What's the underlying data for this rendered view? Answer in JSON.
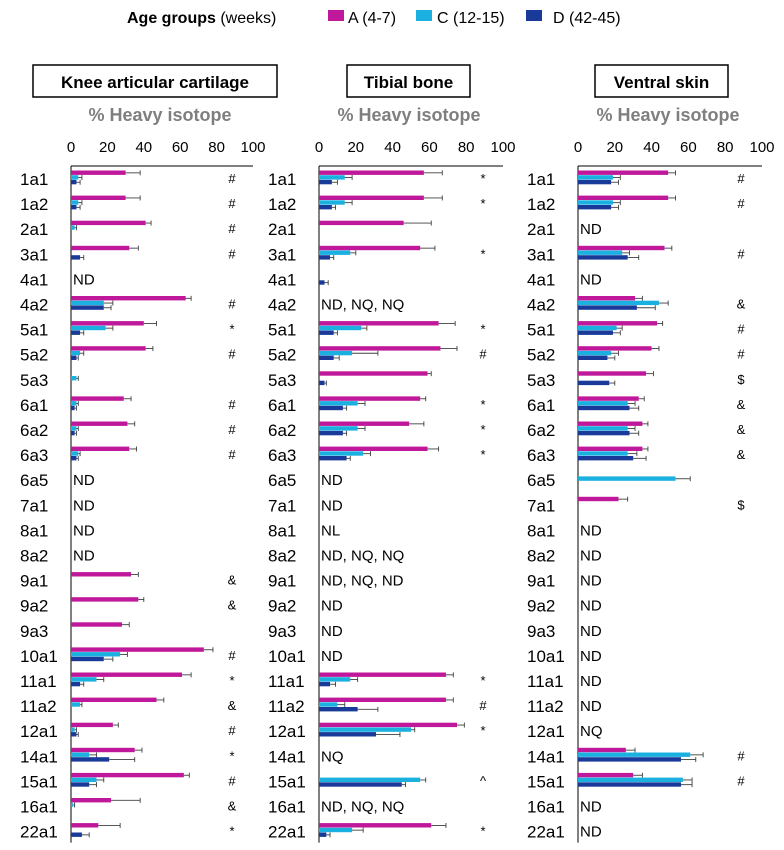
{
  "legend": {
    "title_bold": "Age groups",
    "title_suffix": " (weeks)",
    "items": [
      {
        "label": "A (4-7)",
        "color": "#c0189a"
      },
      {
        "label": "C (12-15)",
        "color": "#1ab0e0"
      },
      {
        "label": "D (42-45)",
        "color": "#1a3a9a"
      }
    ]
  },
  "chart_data": [
    {
      "type": "bar",
      "title": "Knee articular cartilage",
      "xlabel": "% Heavy isotope",
      "xlim": [
        0,
        100
      ],
      "xticks": [
        0,
        20,
        40,
        60,
        80,
        100
      ],
      "categories": [
        "1a1",
        "1a2",
        "2a1",
        "3a1",
        "4a1",
        "4a2",
        "5a1",
        "5a2",
        "5a3",
        "6a1",
        "6a2",
        "6a3",
        "6a5",
        "7a1",
        "8a1",
        "8a2",
        "9a1",
        "9a2",
        "9a3",
        "10a1",
        "11a1",
        "11a2",
        "12a1",
        "14a1",
        "15a1",
        "16a1",
        "22a1"
      ],
      "series": [
        {
          "name": "A (4-7)",
          "values": [
            30,
            30,
            41,
            32,
            null,
            63,
            40,
            41,
            null,
            29,
            31,
            32,
            null,
            null,
            null,
            null,
            33,
            37,
            28,
            73,
            61,
            47,
            23,
            35,
            62,
            22,
            15
          ],
          "errors": [
            8,
            8,
            3,
            5,
            null,
            3,
            7,
            4,
            null,
            4,
            4,
            4,
            null,
            null,
            null,
            null,
            4,
            3,
            4,
            5,
            5,
            4,
            3,
            4,
            3,
            16,
            12
          ]
        },
        {
          "name": "C (12-15)",
          "values": [
            4,
            4,
            2,
            null,
            null,
            18,
            19,
            5,
            3,
            3,
            3,
            4,
            null,
            null,
            null,
            null,
            null,
            null,
            null,
            27,
            14,
            5,
            2,
            10,
            14,
            1,
            null
          ],
          "errors": [
            2,
            2,
            1,
            null,
            null,
            5,
            4,
            2,
            1,
            1,
            1,
            1,
            null,
            null,
            null,
            null,
            null,
            null,
            null,
            4,
            4,
            1,
            1,
            4,
            4,
            1,
            null
          ]
        },
        {
          "name": "D (42-45)",
          "values": [
            3,
            3,
            null,
            5,
            null,
            18,
            5,
            3,
            null,
            2,
            2,
            3,
            null,
            null,
            null,
            null,
            null,
            null,
            null,
            18,
            5,
            null,
            3,
            21,
            10,
            null,
            6
          ],
          "errors": [
            2,
            2,
            null,
            2,
            null,
            4,
            2,
            1,
            null,
            1,
            1,
            1,
            null,
            null,
            null,
            null,
            null,
            null,
            null,
            5,
            2,
            null,
            1,
            14,
            4,
            null,
            4
          ]
        }
      ],
      "row_labels": {
        "4a1": "ND",
        "6a5": "ND",
        "7a1": "ND",
        "8a1": "ND",
        "8a2": "ND"
      },
      "annotations": [
        "#",
        "#",
        "#",
        "#",
        "",
        "#",
        "*",
        "#",
        "",
        "#",
        "#",
        "#",
        "",
        "",
        "",
        "",
        "&",
        "&",
        "",
        "#",
        "*",
        "&",
        "#",
        "*",
        "#",
        "&",
        "*"
      ]
    },
    {
      "type": "bar",
      "title": "Tibial bone",
      "xlabel": "% Heavy isotope",
      "xlim": [
        0,
        100
      ],
      "xticks": [
        0,
        20,
        40,
        60,
        80,
        100
      ],
      "categories": [
        "1a1",
        "1a2",
        "2a1",
        "3a1",
        "4a1",
        "4a2",
        "5a1",
        "5a2",
        "5a3",
        "6a1",
        "6a2",
        "6a3",
        "6a5",
        "7a1",
        "8a1",
        "8a2",
        "9a1",
        "9a2",
        "9a3",
        "10a1",
        "11a1",
        "11a2",
        "12a1",
        "14a1",
        "15a1",
        "16a1",
        "22a1"
      ],
      "series": [
        {
          "name": "A (4-7)",
          "values": [
            57,
            57,
            46,
            55,
            null,
            null,
            65,
            66,
            59,
            55,
            49,
            59,
            null,
            null,
            null,
            null,
            null,
            null,
            null,
            null,
            69,
            69,
            75,
            null,
            null,
            null,
            61
          ],
          "errors": [
            10,
            10,
            15,
            8,
            null,
            null,
            9,
            9,
            2,
            3,
            8,
            6,
            null,
            null,
            null,
            null,
            null,
            null,
            null,
            null,
            4,
            4,
            4,
            null,
            null,
            null,
            8
          ]
        },
        {
          "name": "C (12-15)",
          "values": [
            14,
            14,
            null,
            17,
            null,
            null,
            23,
            18,
            null,
            21,
            21,
            24,
            null,
            null,
            null,
            null,
            null,
            null,
            null,
            null,
            17,
            10,
            50,
            null,
            55,
            null,
            18
          ],
          "errors": [
            4,
            4,
            null,
            3,
            null,
            null,
            3,
            14,
            null,
            4,
            4,
            4,
            null,
            null,
            null,
            null,
            null,
            null,
            null,
            null,
            4,
            4,
            2,
            null,
            3,
            null,
            6
          ]
        },
        {
          "name": "D (42-45)",
          "values": [
            7,
            7,
            null,
            6,
            3,
            null,
            8,
            8,
            3,
            13,
            13,
            15,
            null,
            null,
            null,
            null,
            null,
            null,
            null,
            null,
            6,
            21,
            31,
            null,
            45,
            null,
            4
          ],
          "errors": [
            3,
            2,
            null,
            2,
            2,
            null,
            2,
            3,
            1,
            2,
            2,
            2,
            null,
            null,
            null,
            null,
            null,
            null,
            null,
            null,
            3,
            11,
            13,
            null,
            2,
            null,
            2
          ]
        }
      ],
      "row_labels": {
        "4a2": "ND, NQ, NQ",
        "6a5": "ND",
        "7a1": "ND",
        "8a1": "NL",
        "8a2": "ND, NQ, NQ",
        "9a1": "ND, NQ, ND",
        "9a2": "ND",
        "9a3": "ND",
        "10a1": "ND",
        "14a1": "NQ",
        "16a1": "ND, NQ, NQ"
      },
      "annotations": [
        "*",
        "*",
        "",
        "*",
        "",
        "",
        "*",
        "#",
        "",
        "*",
        "*",
        "*",
        "",
        "",
        "",
        "",
        "",
        "",
        "",
        "",
        "*",
        "#",
        "*",
        "",
        "^",
        "",
        "*"
      ]
    },
    {
      "type": "bar",
      "title": "Ventral skin",
      "xlabel": "% Heavy isotope",
      "xlim": [
        0,
        100
      ],
      "xticks": [
        0,
        20,
        40,
        60,
        80,
        100
      ],
      "categories": [
        "1a1",
        "1a2",
        "2a1",
        "3a1",
        "4a1",
        "4a2",
        "5a1",
        "5a2",
        "5a3",
        "6a1",
        "6a2",
        "6a3",
        "6a5",
        "7a1",
        "8a1",
        "8a2",
        "9a1",
        "9a2",
        "9a3",
        "10a1",
        "11a1",
        "11a2",
        "12a1",
        "14a1",
        "15a1",
        "16a1",
        "22a1"
      ],
      "series": [
        {
          "name": "A (4-7)",
          "values": [
            49,
            49,
            null,
            47,
            null,
            31,
            43,
            40,
            37,
            33,
            35,
            35,
            null,
            22,
            null,
            null,
            null,
            null,
            null,
            null,
            null,
            null,
            null,
            26,
            30,
            null,
            null
          ],
          "errors": [
            4,
            4,
            null,
            4,
            null,
            4,
            3,
            4,
            4,
            3,
            3,
            3,
            null,
            5,
            null,
            null,
            null,
            null,
            null,
            null,
            null,
            null,
            null,
            5,
            5,
            null,
            null
          ]
        },
        {
          "name": "C (12-15)",
          "values": [
            19,
            19,
            null,
            24,
            null,
            44,
            21,
            18,
            null,
            27,
            27,
            27,
            53,
            null,
            null,
            null,
            null,
            null,
            null,
            null,
            null,
            null,
            null,
            61,
            57,
            null,
            null
          ],
          "errors": [
            4,
            4,
            null,
            4,
            null,
            5,
            3,
            4,
            null,
            4,
            4,
            5,
            8,
            null,
            null,
            null,
            null,
            null,
            null,
            null,
            null,
            null,
            null,
            7,
            5,
            null,
            null
          ]
        },
        {
          "name": "D (42-45)",
          "values": [
            18,
            18,
            null,
            27,
            null,
            32,
            19,
            16,
            17,
            28,
            28,
            30,
            null,
            null,
            null,
            null,
            null,
            null,
            null,
            null,
            null,
            null,
            null,
            56,
            56,
            null,
            null
          ],
          "errors": [
            4,
            4,
            null,
            6,
            null,
            10,
            4,
            4,
            3,
            5,
            5,
            7,
            null,
            null,
            null,
            null,
            null,
            null,
            null,
            null,
            null,
            null,
            null,
            8,
            6,
            null,
            null
          ]
        }
      ],
      "row_labels": {
        "2a1": "ND",
        "4a1": "ND",
        "8a1": "ND",
        "8a2": "ND",
        "9a1": "ND",
        "9a2": "ND",
        "9a3": "ND",
        "10a1": "ND",
        "11a1": "ND",
        "11a2": "ND",
        "12a1": "NQ",
        "16a1": "ND",
        "22a1": "ND"
      },
      "annotations": [
        "#",
        "#",
        "",
        "#",
        "",
        "&",
        "#",
        "#",
        "$",
        "&",
        "&",
        "&",
        "",
        "$",
        "",
        "",
        "",
        "",
        "",
        "",
        "",
        "",
        "",
        "#",
        "#",
        "",
        ""
      ]
    }
  ]
}
